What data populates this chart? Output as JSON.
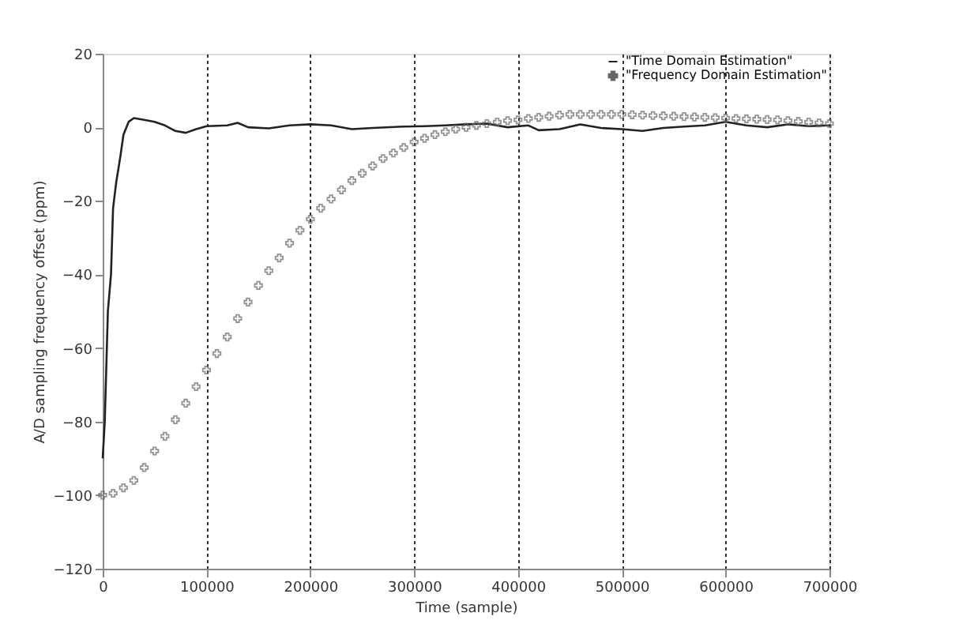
{
  "chart_data": {
    "type": "line",
    "xlabel": "Time (sample)",
    "ylabel": "A/D sampling frequency offset (ppm)",
    "xlim": [
      0,
      700000
    ],
    "xticks": [
      0,
      100000,
      200000,
      300000,
      400000,
      500000,
      600000,
      700000
    ],
    "ylim": [
      -120,
      20
    ],
    "yticks": [
      -120,
      -100,
      -80,
      -60,
      -40,
      -20,
      0,
      20
    ],
    "grid": "x",
    "legend": "top right",
    "series": [
      {
        "name": "\"Time Domain Estimation\"",
        "marker": "none",
        "color": "#222222",
        "x": [
          0,
          2000,
          5000,
          8000,
          10000,
          13000,
          17000,
          20000,
          25000,
          30000,
          40000,
          50000,
          60000,
          70000,
          80000,
          90000,
          100000,
          120000,
          130000,
          140000,
          160000,
          180000,
          200000,
          220000,
          240000,
          260000,
          290000,
          310000,
          330000,
          350000,
          370000,
          390000,
          410000,
          420000,
          440000,
          460000,
          480000,
          500000,
          520000,
          540000,
          560000,
          580000,
          600000,
          620000,
          640000,
          660000,
          680000,
          700000
        ],
        "values": [
          -90,
          -80,
          -50,
          -40,
          -22,
          -15,
          -8,
          -2,
          1.5,
          2.5,
          2,
          1.5,
          0.5,
          -1,
          -1.5,
          -0.5,
          0.3,
          0.5,
          1.2,
          0,
          -0.3,
          0.5,
          0.8,
          0.5,
          -0.5,
          -0.2,
          0.2,
          0.3,
          0.5,
          0.8,
          1,
          0,
          0.5,
          -0.8,
          -0.5,
          0.8,
          -0.2,
          -0.5,
          -1,
          -0.2,
          0.2,
          0.5,
          1.5,
          0.5,
          0,
          0.8,
          0.3,
          0.5
        ]
      },
      {
        "name": "\"Frequency Domain Estimation\"",
        "type": "scatter",
        "marker": "cross",
        "color": "#666666",
        "x": [
          0,
          10000,
          20000,
          30000,
          40000,
          50000,
          60000,
          70000,
          80000,
          90000,
          100000,
          110000,
          120000,
          130000,
          140000,
          150000,
          160000,
          170000,
          180000,
          190000,
          200000,
          210000,
          220000,
          230000,
          240000,
          250000,
          260000,
          270000,
          280000,
          290000,
          300000,
          310000,
          320000,
          330000,
          340000,
          350000,
          360000,
          370000,
          380000,
          390000,
          400000,
          410000,
          420000,
          430000,
          440000,
          450000,
          460000,
          470000,
          480000,
          490000,
          500000,
          510000,
          520000,
          530000,
          540000,
          550000,
          560000,
          570000,
          580000,
          590000,
          600000,
          610000,
          620000,
          630000,
          640000,
          650000,
          660000,
          670000,
          680000,
          690000,
          700000
        ],
        "values": [
          -100,
          -99.5,
          -98,
          -96,
          -92.5,
          -88,
          -84,
          -79.5,
          -75,
          -70.5,
          -66,
          -61.5,
          -57,
          -52,
          -47.5,
          -43,
          -39,
          -35.5,
          -31.5,
          -28,
          -25,
          -22,
          -19.5,
          -17,
          -14.5,
          -12.5,
          -10.5,
          -8.5,
          -7,
          -5.5,
          -4,
          -3,
          -2,
          -1.2,
          -0.5,
          0,
          0.5,
          1,
          1.4,
          1.8,
          2,
          2.4,
          2.7,
          3,
          3.3,
          3.5,
          3.5,
          3.5,
          3.5,
          3.5,
          3.5,
          3.4,
          3.3,
          3.2,
          3.1,
          3,
          2.9,
          2.8,
          2.7,
          2.6,
          2.5,
          2.4,
          2.3,
          2.2,
          2.1,
          2,
          1.8,
          1.6,
          1.4,
          1.2,
          1
        ]
      }
    ]
  }
}
